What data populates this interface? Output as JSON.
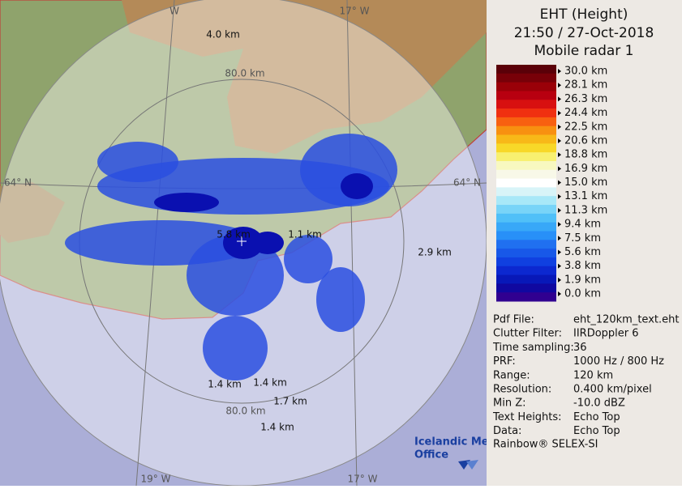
{
  "header": {
    "title": "EHT (Height)",
    "time": "21:50 / 27-Oct-2018",
    "radar": "Mobile radar 1"
  },
  "scale": {
    "labels": [
      "30.0 km",
      "28.1 km",
      "26.3 km",
      "24.4 km",
      "22.5 km",
      "20.6 km",
      "18.8 km",
      "16.9 km",
      "15.0 km",
      "13.1 km",
      "11.3 km",
      "9.4 km",
      "7.5 km",
      "5.6 km",
      "3.8 km",
      "1.9 km",
      "0.0 km"
    ]
  },
  "info": [
    [
      "Pdf File:",
      "eht_120km_text.eht"
    ],
    [
      "Clutter Filter:",
      "IIRDoppler 6"
    ],
    [
      "Time sampling:",
      "36"
    ],
    [
      "PRF:",
      "1000 Hz / 800 Hz"
    ],
    [
      "Range:",
      "120 km"
    ],
    [
      "Resolution:",
      "0.400 km/pixel"
    ],
    [
      "Min Z:",
      "-10.0 dBZ"
    ],
    [
      "Text Heights:",
      "Echo Top"
    ],
    [
      "Data:",
      "Echo Top"
    ]
  ],
  "footer": "Rainbow® SELEX-SI",
  "logo": [
    "Icelandic Met",
    "Office"
  ],
  "map": {
    "labels": [
      "W",
      "17° W",
      "4.0 km",
      "80.0 km",
      "64° N",
      "64° N",
      "5.8 km",
      "1.1 km",
      "2.9 km",
      "1.4 km",
      "1.4 km",
      "1.7 km",
      "80.0 km",
      "1.4 km",
      "19° W",
      "17° W"
    ]
  }
}
